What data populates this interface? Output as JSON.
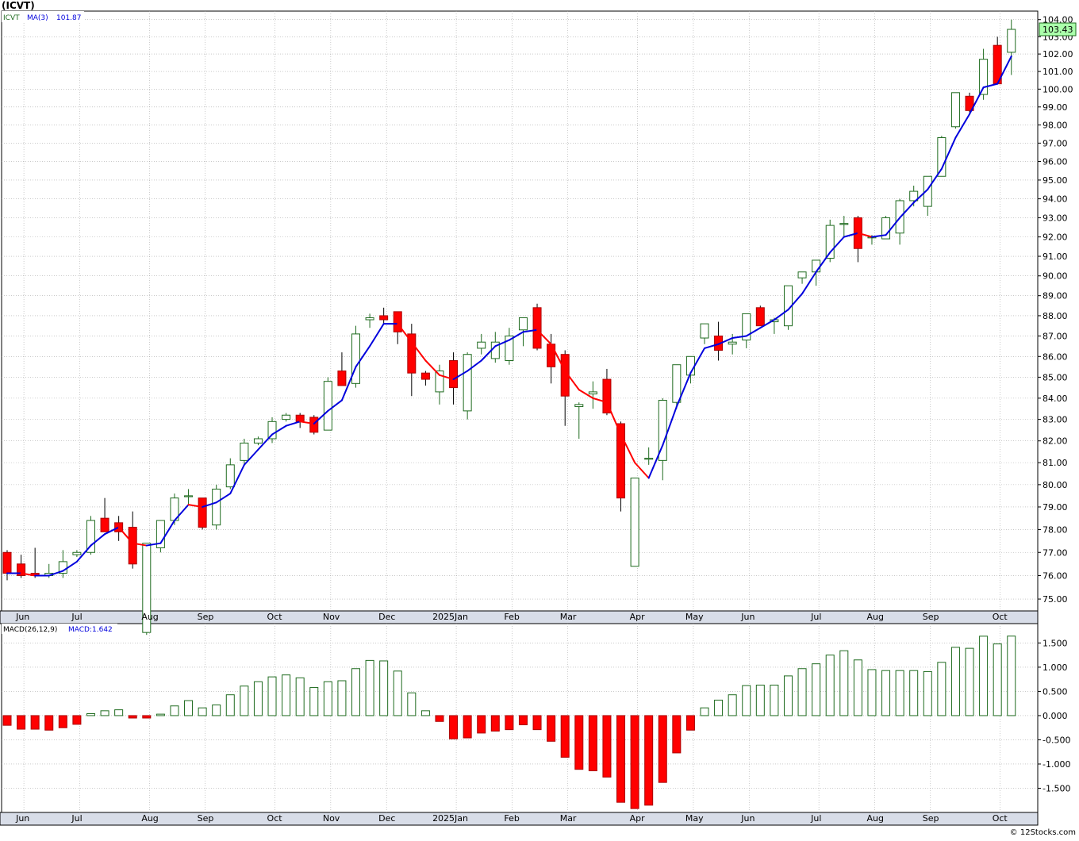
{
  "header": {
    "ticker_title": "(ICVT)"
  },
  "legend": {
    "ticker": "ICVT",
    "ma_label": "MA(3)",
    "ma_value": "101.87"
  },
  "macd_legend": {
    "label": "MACD(26,12,9)",
    "value_label": "MACD:1.642"
  },
  "last_price_label": "103.43",
  "copyright": "© 12Stocks.com",
  "colors": {
    "up": "#1f6b1f",
    "down": "#ff0000",
    "ma_up": "#0000dd",
    "ma_down": "#ff0000",
    "panel_bg": "#ffffff",
    "axis_band": "#d8dde8",
    "grid": "#aaaaaa",
    "price_box": "#aaffaa"
  },
  "price_axis": {
    "ticks": [
      "75.00",
      "76.00",
      "77.00",
      "78.00",
      "79.00",
      "80.00",
      "81.00",
      "82.00",
      "83.00",
      "84.00",
      "85.00",
      "86.00",
      "87.00",
      "88.00",
      "89.00",
      "90.00",
      "91.00",
      "92.00",
      "93.00",
      "94.00",
      "95.00",
      "96.00",
      "97.00",
      "98.00",
      "99.00",
      "100.00",
      "101.00",
      "102.00",
      "103.00",
      "104.00"
    ],
    "scale": "log"
  },
  "macd_axis": {
    "ticks": [
      "1.500",
      "1.000",
      "0.500",
      "0.000",
      "-0.500",
      "-1.000",
      "-1.500"
    ]
  },
  "time_axis": {
    "labels": [
      "Jun",
      "Jul",
      "Aug",
      "Sep",
      "Oct",
      "Nov",
      "Dec",
      "2025Jan",
      "Feb",
      "Mar",
      "Apr",
      "May",
      "Jun",
      "Jul",
      "Aug",
      "Sep",
      "Oct"
    ]
  },
  "chart_data": [
    {
      "type": "candlestick",
      "title": "ICVT",
      "period": "weekly",
      "ylim": [
        74.5,
        104.5
      ],
      "y_scale": "log",
      "grid": true,
      "x_labels": [
        "Jun",
        "Jul",
        "Aug",
        "Sep",
        "Oct",
        "Nov",
        "Dec",
        "2025Jan",
        "Feb",
        "Mar",
        "Apr",
        "May",
        "Jun",
        "Jul",
        "Aug",
        "Sep",
        "Oct"
      ],
      "candles": [
        [
          77.0,
          77.1,
          75.8,
          76.1
        ],
        [
          76.5,
          76.9,
          75.9,
          76.0
        ],
        [
          76.1,
          77.2,
          75.9,
          76.0
        ],
        [
          76.0,
          76.5,
          75.9,
          76.1
        ],
        [
          76.1,
          77.1,
          75.9,
          76.6
        ],
        [
          76.9,
          77.1,
          76.8,
          77.0
        ],
        [
          77.0,
          78.6,
          76.9,
          78.4
        ],
        [
          78.5,
          79.4,
          77.9,
          77.9
        ],
        [
          78.3,
          78.6,
          77.5,
          77.9
        ],
        [
          78.1,
          78.8,
          76.3,
          76.5
        ],
        [
          73.6,
          77.3,
          73.5,
          77.4
        ],
        [
          77.2,
          78.4,
          77.0,
          78.4
        ],
        [
          78.4,
          79.6,
          78.2,
          79.4
        ],
        [
          79.5,
          79.8,
          79.1,
          79.5
        ],
        [
          79.4,
          79.4,
          78.0,
          78.1
        ],
        [
          78.2,
          80.0,
          78.0,
          79.8
        ],
        [
          79.9,
          81.2,
          79.8,
          80.9
        ],
        [
          81.1,
          82.1,
          80.9,
          81.9
        ],
        [
          81.9,
          82.2,
          81.8,
          82.1
        ],
        [
          82.1,
          83.1,
          81.9,
          82.9
        ],
        [
          83.0,
          83.3,
          82.9,
          83.2
        ],
        [
          83.2,
          83.3,
          82.6,
          82.9
        ],
        [
          83.1,
          83.2,
          82.3,
          82.4
        ],
        [
          82.5,
          85.0,
          82.5,
          84.8
        ],
        [
          85.3,
          86.2,
          84.6,
          84.6
        ],
        [
          84.7,
          87.5,
          84.5,
          87.1
        ],
        [
          87.8,
          88.1,
          87.4,
          87.9
        ],
        [
          88.0,
          88.4,
          87.6,
          87.8
        ],
        [
          88.2,
          88.2,
          86.6,
          87.2
        ],
        [
          87.1,
          87.6,
          84.1,
          85.2
        ],
        [
          85.2,
          85.3,
          84.6,
          84.9
        ],
        [
          84.3,
          85.6,
          83.7,
          85.3
        ],
        [
          85.8,
          86.2,
          83.7,
          84.5
        ],
        [
          83.4,
          86.2,
          83.0,
          86.1
        ],
        [
          86.4,
          87.1,
          86.1,
          86.7
        ],
        [
          85.9,
          87.2,
          85.7,
          86.7
        ],
        [
          85.8,
          87.4,
          85.6,
          87.0
        ],
        [
          87.3,
          87.6,
          86.5,
          87.9
        ],
        [
          88.4,
          88.6,
          86.3,
          86.4
        ],
        [
          86.6,
          87.1,
          84.7,
          85.5
        ],
        [
          86.1,
          86.3,
          82.7,
          84.1
        ],
        [
          83.6,
          83.8,
          82.1,
          83.7
        ],
        [
          84.2,
          84.8,
          83.5,
          84.3
        ],
        [
          84.9,
          85.4,
          83.2,
          83.3
        ],
        [
          82.8,
          82.9,
          78.8,
          79.4
        ],
        [
          76.4,
          80.3,
          76.4,
          80.3
        ],
        [
          81.2,
          81.7,
          80.9,
          81.2
        ],
        [
          81.1,
          84.0,
          80.2,
          83.9
        ],
        [
          83.8,
          85.6,
          83.5,
          85.6
        ],
        [
          85.1,
          86.0,
          84.7,
          86.0
        ],
        [
          86.9,
          87.5,
          86.6,
          87.6
        ],
        [
          87.0,
          87.7,
          85.8,
          86.3
        ],
        [
          86.6,
          87.1,
          86.1,
          86.7
        ],
        [
          86.8,
          88.1,
          86.4,
          88.1
        ],
        [
          88.4,
          88.5,
          87.5,
          87.5
        ],
        [
          87.7,
          87.9,
          87.1,
          87.8
        ],
        [
          87.5,
          89.5,
          87.3,
          89.5
        ],
        [
          89.9,
          90.2,
          89.6,
          90.2
        ],
        [
          90.2,
          90.8,
          89.5,
          90.8
        ],
        [
          90.9,
          92.9,
          90.7,
          92.6
        ],
        [
          92.7,
          93.1,
          92.0,
          92.7
        ],
        [
          93.0,
          93.1,
          90.7,
          91.4
        ],
        [
          92.0,
          92.1,
          91.6,
          92.0
        ],
        [
          91.9,
          93.1,
          91.9,
          93.0
        ],
        [
          92.2,
          94.0,
          91.6,
          93.9
        ],
        [
          93.9,
          94.7,
          93.6,
          94.4
        ],
        [
          93.6,
          95.2,
          93.1,
          95.2
        ],
        [
          95.2,
          97.4,
          95.2,
          97.3
        ],
        [
          97.9,
          99.8,
          97.8,
          99.8
        ],
        [
          99.6,
          99.8,
          98.7,
          98.8
        ],
        [
          99.7,
          102.3,
          99.4,
          101.7
        ],
        [
          102.5,
          103.0,
          100.3,
          100.3
        ],
        [
          102.1,
          104.0,
          100.8,
          103.43
        ]
      ],
      "ma_label": "MA(3)",
      "ma_last_value": 101.87,
      "ma": [
        76.1,
        76.1,
        76.0,
        76.0,
        76.2,
        76.6,
        77.3,
        77.8,
        78.1,
        77.4,
        77.3,
        77.4,
        78.4,
        79.1,
        79.0,
        79.2,
        79.6,
        80.9,
        81.6,
        82.3,
        82.7,
        82.9,
        82.8,
        83.4,
        83.9,
        85.5,
        86.5,
        87.6,
        87.6,
        86.7,
        85.8,
        85.1,
        84.9,
        85.3,
        85.8,
        86.5,
        86.8,
        87.2,
        87.3,
        86.6,
        85.3,
        84.4,
        84.0,
        83.8,
        82.3,
        81.0,
        80.3,
        81.8,
        83.6,
        85.2,
        86.4,
        86.6,
        86.9,
        87.0,
        87.4,
        87.8,
        88.3,
        89.1,
        90.2,
        91.2,
        92.0,
        92.2,
        92.0,
        92.1,
        93.0,
        93.8,
        94.5,
        95.6,
        97.3,
        98.6,
        100.1,
        100.3,
        101.87
      ],
      "last_price": 103.43
    },
    {
      "type": "bar",
      "title": "MACD(26,12,9)",
      "last_value": 1.642,
      "ylim": [
        -2.0,
        1.9
      ],
      "grid": true,
      "values": [
        -0.2,
        -0.28,
        -0.28,
        -0.3,
        -0.25,
        -0.18,
        0.04,
        0.1,
        0.12,
        -0.05,
        -0.05,
        0.03,
        0.2,
        0.31,
        0.16,
        0.22,
        0.43,
        0.61,
        0.7,
        0.8,
        0.84,
        0.78,
        0.58,
        0.7,
        0.72,
        0.97,
        1.14,
        1.13,
        0.92,
        0.47,
        0.1,
        -0.12,
        -0.48,
        -0.46,
        -0.36,
        -0.32,
        -0.29,
        -0.19,
        -0.29,
        -0.53,
        -0.86,
        -1.11,
        -1.14,
        -1.27,
        -1.79,
        -1.92,
        -1.85,
        -1.38,
        -0.77,
        -0.3,
        0.16,
        0.32,
        0.43,
        0.62,
        0.63,
        0.63,
        0.82,
        0.97,
        1.07,
        1.25,
        1.34,
        1.15,
        0.95,
        0.93,
        0.93,
        0.93,
        0.91,
        1.1,
        1.41,
        1.39,
        1.64,
        1.48,
        1.642
      ]
    }
  ]
}
